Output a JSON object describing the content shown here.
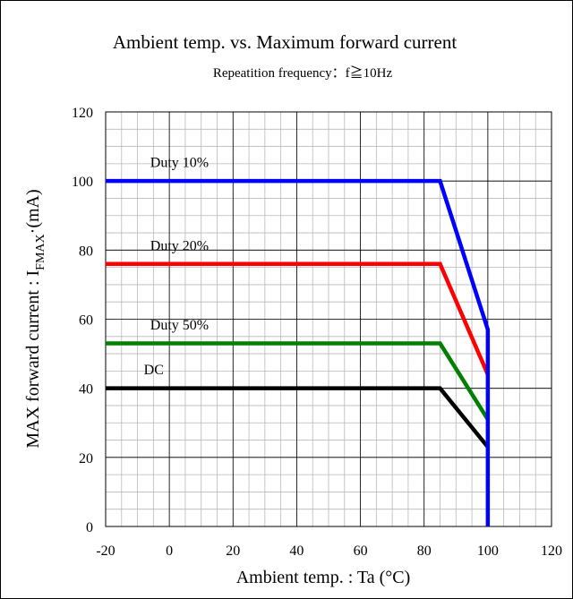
{
  "chart_data": {
    "type": "line",
    "title": "Ambient temp. vs. Maximum forward current",
    "subtitle": "Repeatition frequency：f≧10Hz",
    "xlabel": "Ambient temp. : Ta (°C)",
    "ylabel": {
      "prefix": "MAX forward current : I",
      "subscript": "FMAX",
      "suffix": "·(mA)"
    },
    "xlim": [
      -20,
      120
    ],
    "ylim": [
      0,
      120
    ],
    "x_ticks": [
      -20,
      0,
      20,
      40,
      60,
      80,
      100,
      120
    ],
    "y_ticks": [
      0,
      20,
      40,
      60,
      80,
      100,
      120
    ],
    "x_tick_labels": [
      "-20",
      "0",
      "20",
      "40",
      "60",
      "80",
      "100",
      "120"
    ],
    "y_tick_labels": [
      "0",
      "20",
      "40",
      "60",
      "80",
      "100",
      "120"
    ],
    "minor_grid_step": 5,
    "grid": true,
    "series": [
      {
        "name": "Duty 10%",
        "color": "#0000ff",
        "x": [
          -20,
          85,
          100,
          100
        ],
        "y": [
          100,
          100,
          57,
          0
        ],
        "label_at": [
          -6,
          104
        ]
      },
      {
        "name": "Duty 20%",
        "color": "#ff0000",
        "x": [
          -20,
          85,
          100
        ],
        "y": [
          76,
          76,
          44
        ],
        "label_at": [
          -6,
          80
        ]
      },
      {
        "name": "Duty 50%",
        "color": "#008000",
        "x": [
          -20,
          85,
          100
        ],
        "y": [
          53,
          53,
          31
        ],
        "label_at": [
          -6,
          57
        ]
      },
      {
        "name": "DC",
        "color": "#000000",
        "x": [
          -20,
          85,
          100
        ],
        "y": [
          40,
          40,
          23
        ],
        "label_at": [
          -8,
          44
        ]
      }
    ]
  }
}
